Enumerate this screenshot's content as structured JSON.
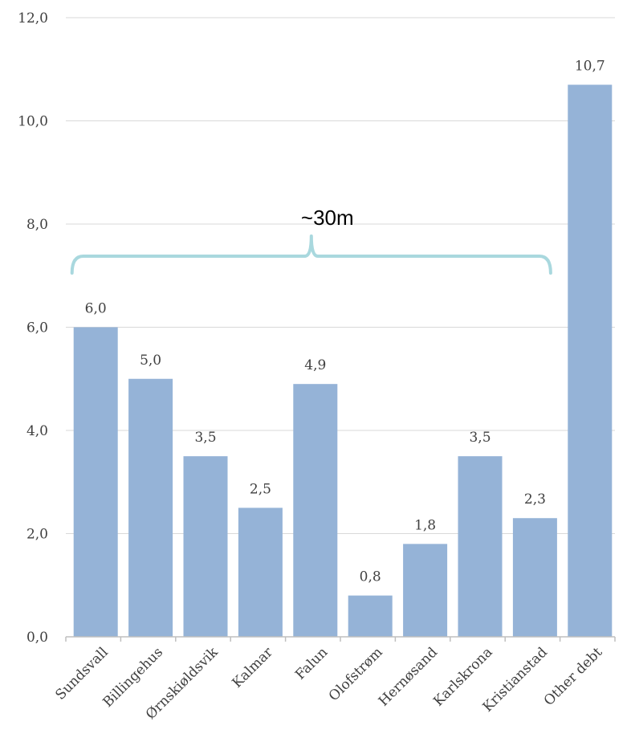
{
  "chart_data": {
    "type": "bar",
    "categories": [
      "Sundsvall",
      "Billingehus",
      "Ørnskiøldsvik",
      "Kalmar",
      "Falun",
      "Olofstrøm",
      "Hernøsand",
      "Karlskrona",
      "Kristianstad",
      "Other debt"
    ],
    "values": [
      6.0,
      5.0,
      3.5,
      2.5,
      4.9,
      0.8,
      1.8,
      3.5,
      2.3,
      10.7
    ],
    "data_labels": [
      "6,0",
      "5,0",
      "3,5",
      "2,5",
      "4,9",
      "0,8",
      "1,8",
      "3,5",
      "2,3",
      "10,7"
    ],
    "y_ticks": [
      "0,0",
      "2,0",
      "4,0",
      "6,0",
      "8,0",
      "10,0",
      "12,0"
    ],
    "y_tick_values": [
      0,
      2,
      4,
      6,
      8,
      10,
      12
    ],
    "ylim": [
      0,
      12
    ],
    "grid": true,
    "title": "",
    "xlabel": "",
    "ylabel": "",
    "bar_color": "#95b3d7",
    "grid_color": "#d9d9d9",
    "axis_color": "#bfbfbf",
    "annotations": [
      {
        "text": "~30m",
        "shape": "curly-brace",
        "span_categories": [
          "Sundsvall",
          "Kristianstad"
        ],
        "color": "#a9d8de"
      }
    ]
  }
}
